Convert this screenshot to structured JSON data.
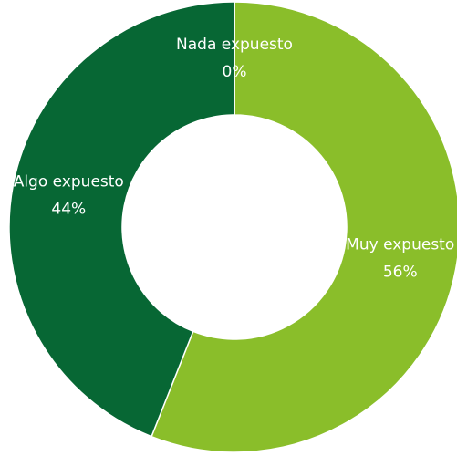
{
  "chart_data": {
    "type": "donut",
    "categories": [
      "Muy expuesto",
      "Algo expuesto",
      "Nada expuesto"
    ],
    "values": [
      56,
      44,
      0
    ],
    "value_labels": [
      "56%",
      "44%",
      "0%"
    ],
    "colors": [
      "#8abe2a",
      "#076734",
      "#a5a5a5"
    ]
  }
}
